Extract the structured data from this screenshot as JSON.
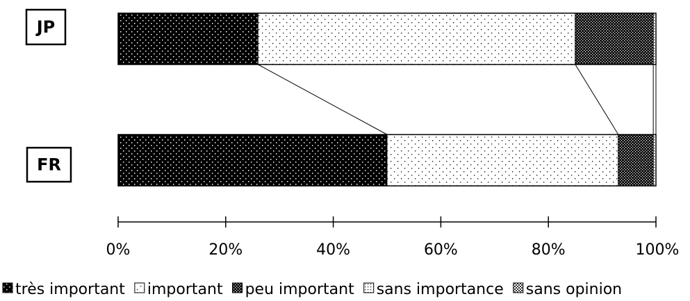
{
  "chart_data": {
    "type": "bar",
    "orientation": "horizontal",
    "stacked": "percent",
    "categories": [
      "JP",
      "FR"
    ],
    "series": [
      {
        "name": "très important",
        "values": [
          26,
          50
        ],
        "pattern": "dots-on-black"
      },
      {
        "name": "important",
        "values": [
          59,
          43
        ],
        "pattern": "sparse-dots-on-white"
      },
      {
        "name": "peu important",
        "values": [
          14.5,
          6.5
        ],
        "pattern": "dense-black-checker"
      },
      {
        "name": "sans importance",
        "values": [
          0.5,
          0.5
        ],
        "pattern": "dotted-light"
      },
      {
        "name": "sans opinion",
        "values": [
          0,
          0
        ],
        "pattern": "grey-checker"
      }
    ],
    "xlim": [
      0,
      100
    ],
    "x_ticks": [
      "0%",
      "20%",
      "40%",
      "60%",
      "80%",
      "100%"
    ],
    "series_lines": true,
    "legend_position": "bottom",
    "title": "",
    "xlabel": "",
    "ylabel": "",
    "grid": false
  }
}
